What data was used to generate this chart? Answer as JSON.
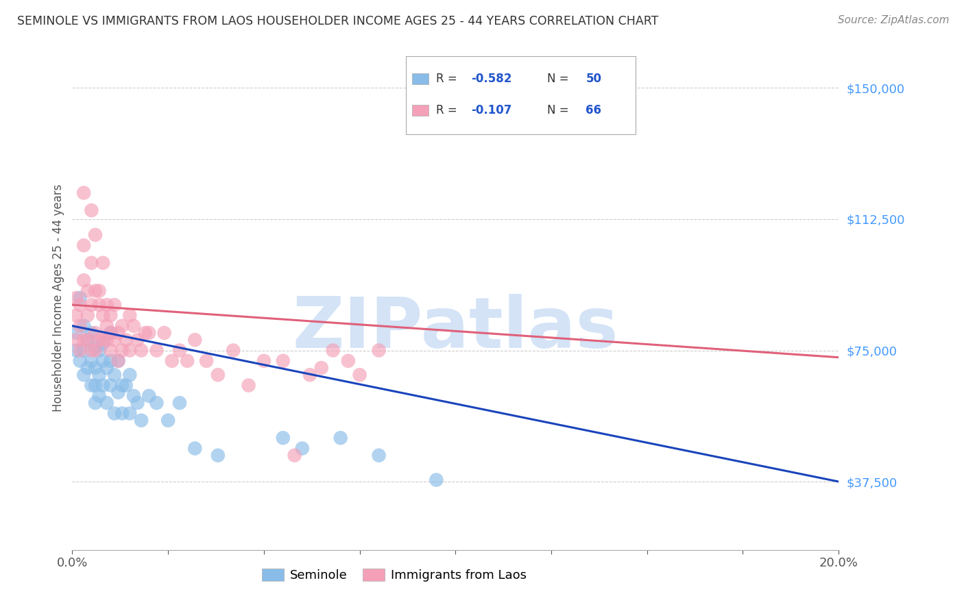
{
  "title": "SEMINOLE VS IMMIGRANTS FROM LAOS HOUSEHOLDER INCOME AGES 25 - 44 YEARS CORRELATION CHART",
  "source": "Source: ZipAtlas.com",
  "ylabel": "Householder Income Ages 25 - 44 years",
  "ytick_labels": [
    "$37,500",
    "$75,000",
    "$112,500",
    "$150,000"
  ],
  "ytick_values": [
    37500,
    75000,
    112500,
    150000
  ],
  "xlim": [
    0.0,
    0.2
  ],
  "ylim": [
    18000,
    162000
  ],
  "legend_label_color": "#2255cc",
  "seminole_color": "#89bce8",
  "laos_color": "#f4a0b8",
  "line_blue": "#1a44bb",
  "line_pink": "#e0607a",
  "watermark_color": "#cddff5",
  "background_color": "#ffffff",
  "grid_color": "#cccccc",
  "axis_label_color": "#555555",
  "ytick_color": "#4499ff",
  "R_blue": -0.582,
  "N_blue": 50,
  "R_pink": -0.107,
  "N_pink": 66,
  "blue_x": [
    0.001,
    0.001,
    0.002,
    0.002,
    0.003,
    0.003,
    0.003,
    0.004,
    0.004,
    0.005,
    0.005,
    0.005,
    0.006,
    0.006,
    0.006,
    0.006,
    0.007,
    0.007,
    0.007,
    0.008,
    0.008,
    0.008,
    0.009,
    0.009,
    0.01,
    0.01,
    0.01,
    0.011,
    0.011,
    0.012,
    0.012,
    0.013,
    0.013,
    0.014,
    0.015,
    0.015,
    0.016,
    0.017,
    0.018,
    0.02,
    0.022,
    0.025,
    0.028,
    0.032,
    0.038,
    0.055,
    0.06,
    0.07,
    0.08,
    0.095
  ],
  "blue_y": [
    80000,
    75000,
    90000,
    72000,
    82000,
    75000,
    68000,
    78000,
    70000,
    80000,
    72000,
    65000,
    76000,
    70000,
    65000,
    60000,
    75000,
    68000,
    62000,
    72000,
    65000,
    77000,
    70000,
    60000,
    72000,
    65000,
    80000,
    68000,
    57000,
    72000,
    63000,
    65000,
    57000,
    65000,
    57000,
    68000,
    62000,
    60000,
    55000,
    62000,
    60000,
    55000,
    60000,
    47000,
    45000,
    50000,
    47000,
    50000,
    45000,
    38000
  ],
  "pink_x": [
    0.001,
    0.001,
    0.001,
    0.002,
    0.002,
    0.002,
    0.003,
    0.003,
    0.003,
    0.003,
    0.004,
    0.004,
    0.004,
    0.005,
    0.005,
    0.005,
    0.005,
    0.006,
    0.006,
    0.006,
    0.006,
    0.007,
    0.007,
    0.007,
    0.008,
    0.008,
    0.008,
    0.009,
    0.009,
    0.009,
    0.01,
    0.01,
    0.01,
    0.011,
    0.011,
    0.012,
    0.012,
    0.013,
    0.013,
    0.014,
    0.015,
    0.015,
    0.016,
    0.017,
    0.018,
    0.019,
    0.02,
    0.022,
    0.024,
    0.026,
    0.028,
    0.03,
    0.032,
    0.035,
    0.038,
    0.042,
    0.046,
    0.05,
    0.055,
    0.058,
    0.062,
    0.065,
    0.068,
    0.072,
    0.075,
    0.08
  ],
  "pink_y": [
    85000,
    78000,
    90000,
    82000,
    88000,
    75000,
    95000,
    105000,
    120000,
    78000,
    85000,
    92000,
    78000,
    88000,
    75000,
    100000,
    115000,
    92000,
    80000,
    75000,
    108000,
    88000,
    78000,
    92000,
    78000,
    85000,
    100000,
    82000,
    78000,
    88000,
    80000,
    75000,
    85000,
    78000,
    88000,
    80000,
    72000,
    82000,
    75000,
    78000,
    85000,
    75000,
    82000,
    78000,
    75000,
    80000,
    80000,
    75000,
    80000,
    72000,
    75000,
    72000,
    78000,
    72000,
    68000,
    75000,
    65000,
    72000,
    72000,
    45000,
    68000,
    70000,
    75000,
    72000,
    68000,
    75000
  ]
}
